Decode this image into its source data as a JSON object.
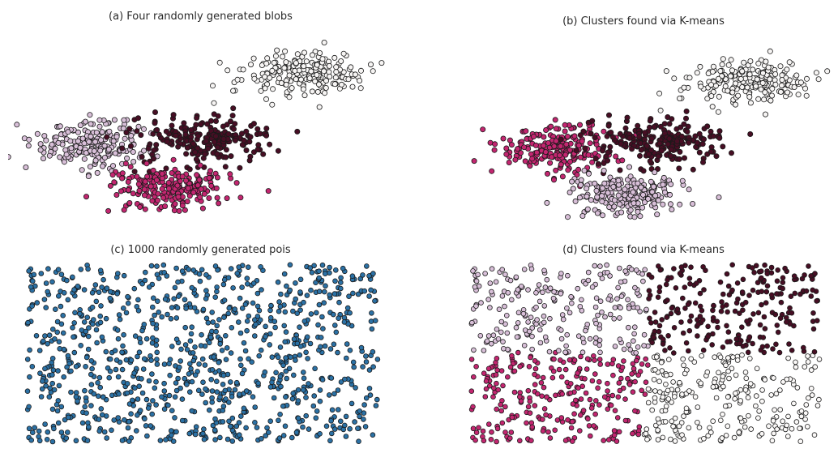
{
  "figure": {
    "background": "#ffffff",
    "marker": {
      "edge_color": "#1a1a1a",
      "edge_width": 0.8
    }
  },
  "chart_data": [
    {
      "type": "scatter",
      "panel": "a",
      "title": "(a) Four randomly generated blobs",
      "axes_visible": false,
      "distribution": "gaussian",
      "seed": 42,
      "marker_radius": 3.1,
      "clusters": [
        {
          "name": "blob-top-right",
          "color": "#f6f4f3",
          "center": [
            0.768,
            0.215
          ],
          "std": [
            0.082,
            0.05
          ],
          "n": 210
        },
        {
          "name": "blob-left",
          "color": "#d8bfd8",
          "center": [
            0.215,
            0.545
          ],
          "std": [
            0.082,
            0.055
          ],
          "n": 210
        },
        {
          "name": "blob-middle",
          "color": "#470e24",
          "center": [
            0.51,
            0.515
          ],
          "std": [
            0.09,
            0.055
          ],
          "n": 230
        },
        {
          "name": "blob-bottom",
          "color": "#c32670",
          "center": [
            0.432,
            0.745
          ],
          "std": [
            0.08,
            0.047
          ],
          "n": 210
        }
      ]
    },
    {
      "type": "scatter",
      "panel": "b",
      "title": "(b) Clusters found via K-means",
      "axes_visible": false,
      "distribution": "gaussian",
      "seed": 42,
      "marker_radius": 3.1,
      "clusters": [
        {
          "name": "cluster-top-right",
          "color": "#f6f4f3",
          "center": [
            0.778,
            0.235
          ],
          "std": [
            0.082,
            0.05
          ],
          "n": 210
        },
        {
          "name": "cluster-left",
          "color": "#c32670",
          "center": [
            0.272,
            0.555
          ],
          "std": [
            0.082,
            0.055
          ],
          "n": 210
        },
        {
          "name": "cluster-middle",
          "color": "#470e24",
          "center": [
            0.538,
            0.515
          ],
          "std": [
            0.09,
            0.055
          ],
          "n": 230
        },
        {
          "name": "cluster-bottom",
          "color": "#d8bfd8",
          "center": [
            0.465,
            0.77
          ],
          "std": [
            0.076,
            0.047
          ],
          "n": 210
        }
      ]
    },
    {
      "type": "scatter",
      "panel": "c",
      "title": "(c) 1000 randomly generated pois",
      "axes_visible": false,
      "distribution": "uniform",
      "seed": 7,
      "n": 1000,
      "marker_radius": 2.9,
      "color": "#2b71a5",
      "range": {
        "x": [
          0.05,
          0.96
        ],
        "y": [
          0.02,
          0.97
        ]
      }
    },
    {
      "type": "scatter",
      "panel": "d",
      "title": "(d) Clusters found via K-means",
      "axes_visible": false,
      "distribution": "uniform",
      "seed": 7,
      "n": 1000,
      "marker_radius": 2.9,
      "range": {
        "x": [
          0.05,
          0.96
        ],
        "y": [
          0.02,
          0.97
        ]
      },
      "kmeans_centers": [
        {
          "name": "cluster-top-left",
          "color": "#d8bfd8",
          "center": [
            0.26,
            0.24
          ]
        },
        {
          "name": "cluster-top-right",
          "color": "#470e24",
          "center": [
            0.76,
            0.23
          ]
        },
        {
          "name": "cluster-bottom-left",
          "color": "#c32670",
          "center": [
            0.25,
            0.74
          ]
        },
        {
          "name": "cluster-bottom-right",
          "color": "#faf8f7",
          "center": [
            0.76,
            0.76
          ]
        }
      ]
    }
  ]
}
